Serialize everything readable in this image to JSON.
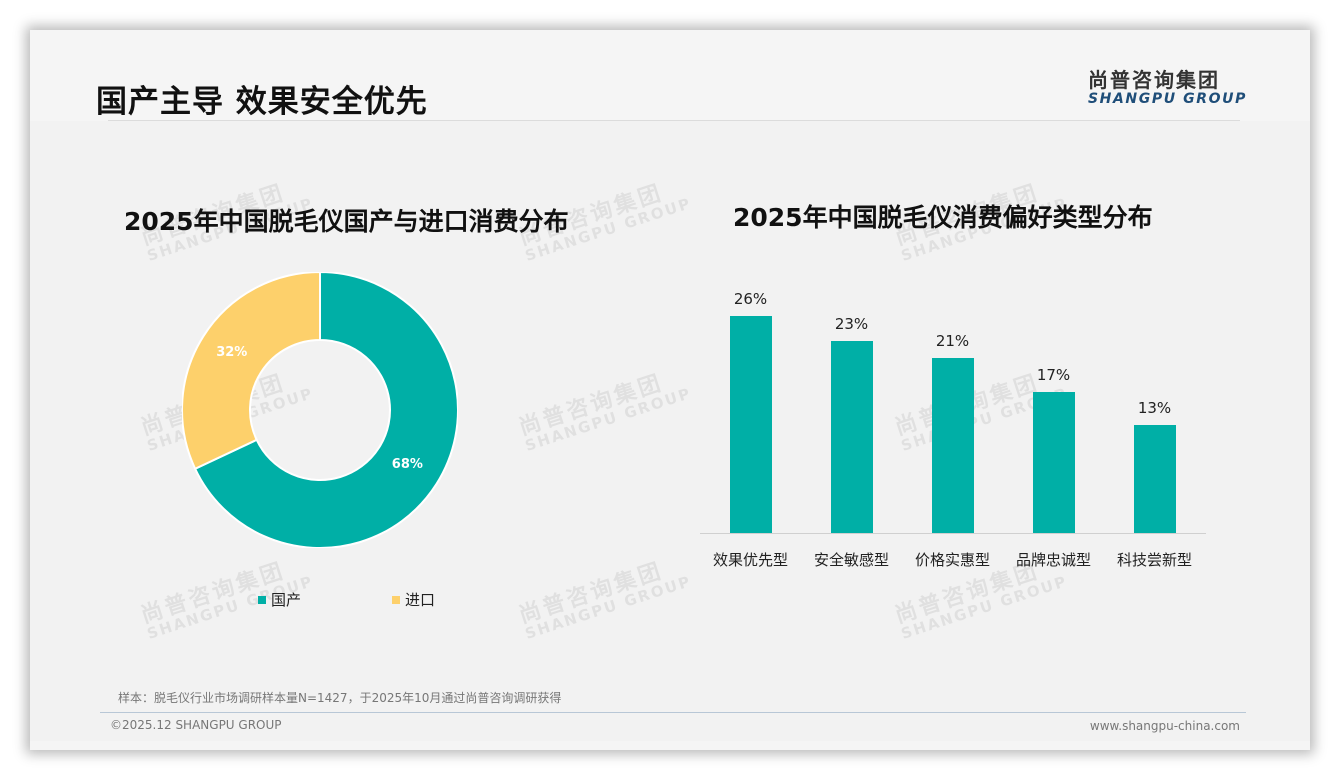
{
  "header": {
    "title": "国产主导 效果安全优先",
    "logo_cn": "尚普咨询集团",
    "logo_en": "SHANGPU GROUP"
  },
  "watermark": {
    "cn": "尚普咨询集团",
    "en": "SHANGPU GROUP"
  },
  "colors": {
    "teal": "#00afa6",
    "yellow": "#fdd06b",
    "brand_blue": "#1f4e79"
  },
  "chart_data": [
    {
      "type": "pie",
      "variant": "donut",
      "title": "2025年中国脱毛仪国产与进口消费分布",
      "categories": [
        "国产",
        "进口"
      ],
      "values": [
        68,
        32
      ],
      "value_labels": [
        "68%",
        "32%"
      ],
      "colors": [
        "#00afa6",
        "#fdd06b"
      ],
      "legend_position": "bottom"
    },
    {
      "type": "bar",
      "title": "2025年中国脱毛仪消费偏好类型分布",
      "categories": [
        "效果优先型",
        "安全敏感型",
        "价格实惠型",
        "品牌忠诚型",
        "科技尝新型"
      ],
      "values": [
        26,
        23,
        21,
        17,
        13
      ],
      "value_labels": [
        "26%",
        "23%",
        "21%",
        "17%",
        "13%"
      ],
      "xlabel": "",
      "ylabel": "",
      "grid": false,
      "color": "#00afa6"
    }
  ],
  "footer": {
    "note": "样本：脱毛仪行业市场调研样本量N=1427，于2025年10月通过尚普咨询调研获得",
    "copyright": "©2025.12 SHANGPU GROUP",
    "website": "www.shangpu-china.com"
  }
}
